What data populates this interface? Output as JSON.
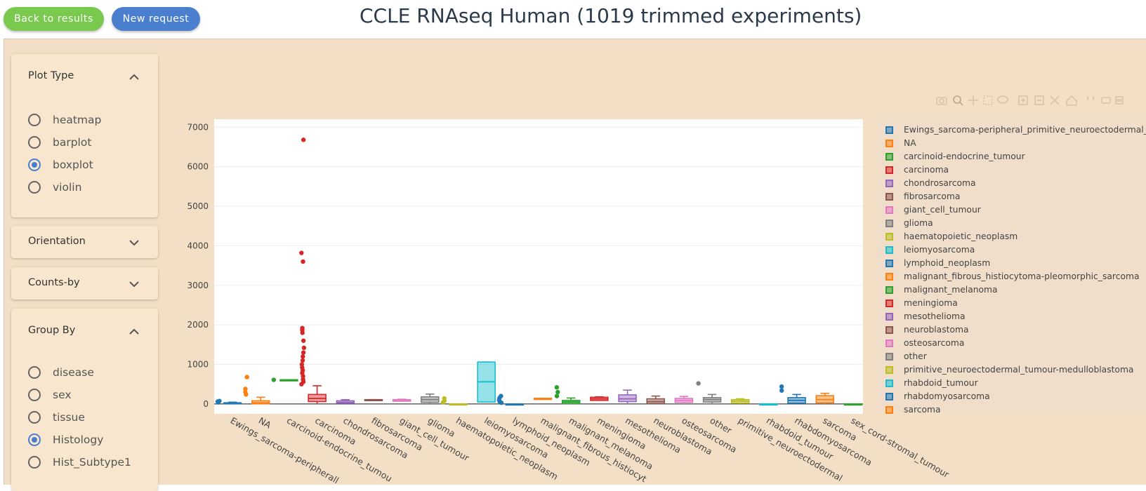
{
  "header": {
    "back_label": "Back to results",
    "new_label": "New request",
    "title": "CCLE RNAseq Human (1019 trimmed experiments)"
  },
  "sidebar": {
    "plot_type": {
      "title": "Plot Type",
      "options": [
        "heatmap",
        "barplot",
        "boxplot",
        "violin"
      ],
      "selected": "boxplot"
    },
    "orientation": {
      "title": "Orientation"
    },
    "counts_by": {
      "title": "Counts-by"
    },
    "group_by": {
      "title": "Group By",
      "options": [
        "disease",
        "sex",
        "tissue",
        "Histology",
        "Hist_Subtype1"
      ],
      "selected": "Histology"
    }
  },
  "colors": {
    "accent": "#4a7fcf",
    "back_button": "#7ac94f",
    "panel": "#f2dfc6",
    "card": "#f8e6cf"
  },
  "modebar_icons": [
    "camera-icon",
    "zoom-icon",
    "pan-icon",
    "box-select-icon",
    "lasso-icon",
    "zoom-in-icon",
    "zoom-out-icon",
    "autoscale-icon",
    "reset-axes-icon",
    "spike-lines-icon",
    "hover-closest-icon",
    "hover-compare-icon"
  ],
  "chart_data": {
    "type": "box",
    "ylim": [
      -250,
      7200
    ],
    "yticks": [
      0,
      1000,
      2000,
      3000,
      4000,
      5000,
      6000,
      7000
    ],
    "series": [
      {
        "name": "Ewings_sarcoma-peripheral_primitive_neuroectodermal_tumour",
        "label": "Ewings_sarcoma-peripheral_primitive_neuroectodermal_tumour",
        "axis_label": "Ewings_sarcoma-peripherall",
        "color": "#1f77b4",
        "q1": 2,
        "median": 12,
        "q3": 30,
        "low": 0,
        "high": 45,
        "outliers": [
          40,
          60,
          75
        ]
      },
      {
        "name": "NA",
        "label": "NA",
        "axis_label": "NA",
        "color": "#ff7f0e",
        "q1": 5,
        "median": 30,
        "q3": 80,
        "low": 0,
        "high": 170,
        "outliers": [
          240,
          300,
          380,
          680
        ]
      },
      {
        "name": "carcinoid-endocrine_tumour",
        "label": "carcinoid-endocrine_tumour",
        "axis_label": "carcinoid-endocrine_tumou",
        "color": "#2ca02c",
        "q1": 610,
        "median": 610,
        "q3": 610,
        "low": 610,
        "high": 610,
        "outliers": [
          610
        ]
      },
      {
        "name": "carcinoma",
        "label": "carcinoma",
        "axis_label": "carcinoma",
        "color": "#d62728",
        "q1": 60,
        "median": 140,
        "q3": 240,
        "low": 0,
        "high": 460,
        "outliers": [
          500,
          560,
          620,
          700,
          780,
          850,
          920,
          1000,
          1100,
          1200,
          1300,
          1420,
          1600,
          1800,
          1870,
          1920,
          3600,
          3820,
          6680
        ]
      },
      {
        "name": "chondrosarcoma",
        "label": "chondrosarcoma",
        "axis_label": "chondrosarcoma",
        "color": "#9467bd",
        "q1": 20,
        "median": 40,
        "q3": 80,
        "low": 0,
        "high": 110,
        "outliers": []
      },
      {
        "name": "fibrosarcoma",
        "label": "fibrosarcoma",
        "axis_label": "fibrosarcoma",
        "color": "#8c564b",
        "q1": 90,
        "median": 100,
        "q3": 110,
        "low": 90,
        "high": 110,
        "outliers": []
      },
      {
        "name": "giant_cell_tumour",
        "label": "giant_cell_tumour",
        "axis_label": "giant_cell_tumour",
        "color": "#e377c2",
        "q1": 70,
        "median": 90,
        "q3": 110,
        "low": 60,
        "high": 120,
        "outliers": []
      },
      {
        "name": "glioma",
        "label": "glioma",
        "axis_label": "glioma",
        "color": "#7f7f7f",
        "q1": 40,
        "median": 110,
        "q3": 180,
        "low": 0,
        "high": 250,
        "outliers": []
      },
      {
        "name": "haematopoietic_neoplasm",
        "label": "haematopoietic_neoplasm",
        "axis_label": "haematopoietic_neoplasm",
        "color": "#bcbd22",
        "q1": 0,
        "median": 0,
        "q3": 0,
        "low": 0,
        "high": 0,
        "outliers": [
          40,
          80,
          140
        ]
      },
      {
        "name": "leiomyosarcoma",
        "label": "leiomyosarcoma",
        "axis_label": "leiomyosarcoma",
        "color": "#17becf",
        "q1": 50,
        "median": 560,
        "q3": 1060,
        "low": 50,
        "high": 1060,
        "outliers": []
      },
      {
        "name": "lymphoid_neoplasm",
        "label": "lymphoid_neoplasm",
        "axis_label": "lymphoid_neoplasm",
        "color": "#1f77b4",
        "q1": 0,
        "median": 0,
        "q3": 0,
        "low": 0,
        "high": 0,
        "outliers": [
          30,
          60,
          100,
          150,
          200
        ]
      },
      {
        "name": "malignant_fibrous_histiocytoma-pleomorphic_sarcoma",
        "label": "malignant_fibrous_histiocytoma-pleomorphic_sarcoma",
        "axis_label": "malignant_fibrous_histiocyt",
        "color": "#ff7f0e",
        "q1": 140,
        "median": 140,
        "q3": 140,
        "low": 140,
        "high": 140,
        "outliers": []
      },
      {
        "name": "malignant_melanoma",
        "label": "malignant_melanoma",
        "axis_label": "malignant_melanoma",
        "color": "#2ca02c",
        "q1": 10,
        "median": 50,
        "q3": 90,
        "low": 0,
        "high": 150,
        "outliers": [
          200,
          300,
          420
        ]
      },
      {
        "name": "meningioma",
        "label": "meningioma",
        "axis_label": "meningioma",
        "color": "#d62728",
        "q1": 90,
        "median": 130,
        "q3": 170,
        "low": 80,
        "high": 180,
        "outliers": []
      },
      {
        "name": "mesothelioma",
        "label": "mesothelioma",
        "axis_label": "mesothelioma",
        "color": "#9467bd",
        "q1": 60,
        "median": 130,
        "q3": 230,
        "low": 0,
        "high": 350,
        "outliers": []
      },
      {
        "name": "neuroblastoma",
        "label": "neuroblastoma",
        "axis_label": "neuroblastoma",
        "color": "#8c564b",
        "q1": 10,
        "median": 60,
        "q3": 130,
        "low": 0,
        "high": 200,
        "outliers": []
      },
      {
        "name": "osteosarcoma",
        "label": "osteosarcoma",
        "axis_label": "osteosarcoma",
        "color": "#e377c2",
        "q1": 40,
        "median": 90,
        "q3": 140,
        "low": 0,
        "high": 190,
        "outliers": []
      },
      {
        "name": "other",
        "label": "other",
        "axis_label": "other",
        "color": "#7f7f7f",
        "q1": 50,
        "median": 110,
        "q3": 160,
        "low": 0,
        "high": 240,
        "outliers": [
          520
        ]
      },
      {
        "name": "primitive_neuroectodermal_tumour-medulloblastoma",
        "label": "primitive_neuroectodermal_tumour-medulloblastoma",
        "axis_label": "primitive_neuroectodermal",
        "color": "#bcbd22",
        "q1": 20,
        "median": 70,
        "q3": 110,
        "low": 0,
        "high": 130,
        "outliers": []
      },
      {
        "name": "rhabdoid_tumour",
        "label": "rhabdoid_tumour",
        "axis_label": "rhabdoid_tumour",
        "color": "#17becf",
        "q1": 0,
        "median": 0,
        "q3": 0,
        "low": 0,
        "high": 0,
        "outliers": []
      },
      {
        "name": "rhabdomyosarcoma",
        "label": "rhabdomyosarcoma",
        "axis_label": "rhabdomyosarcoma",
        "color": "#1f77b4",
        "q1": 20,
        "median": 90,
        "q3": 160,
        "low": 0,
        "high": 240,
        "outliers": [
          340,
          440
        ]
      },
      {
        "name": "sarcoma",
        "label": "sarcoma",
        "axis_label": "sarcoma",
        "color": "#ff7f0e",
        "q1": 30,
        "median": 110,
        "q3": 210,
        "low": 0,
        "high": 270,
        "outliers": []
      },
      {
        "name": "sex_cord-stromal_tumour",
        "label": "",
        "axis_label": "sex_cord-stromal_tumour",
        "color": "#2ca02c",
        "q1": 0,
        "median": 0,
        "q3": 0,
        "low": 0,
        "high": 0,
        "outliers": []
      }
    ]
  }
}
